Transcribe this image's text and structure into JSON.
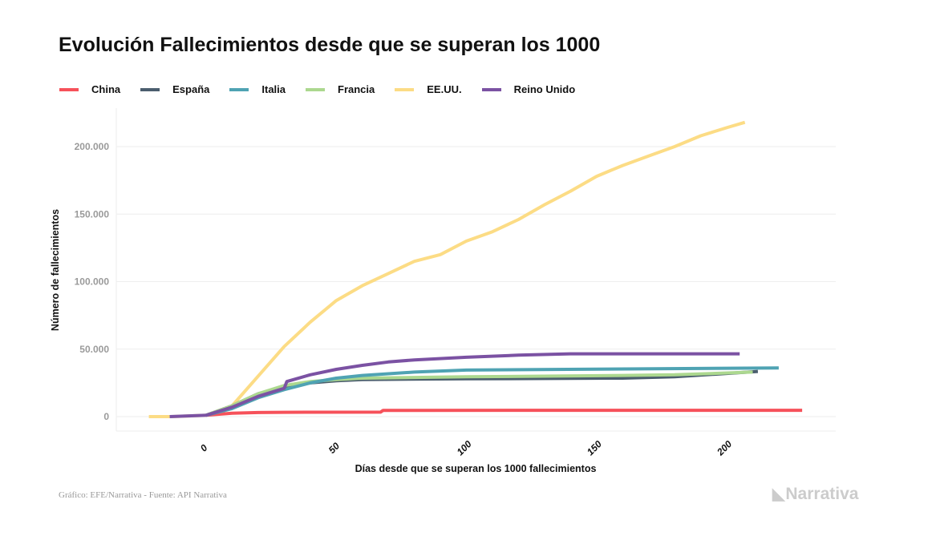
{
  "chart_data": {
    "type": "line",
    "title": "Evolución Fallecimientos desde que se superan los 1000",
    "xlabel": "Días desde que se superan los 1000 fallecimientos",
    "ylabel": "Número de fallecimientos",
    "xlim": [
      -35,
      240
    ],
    "ylim": [
      -12000,
      228000
    ],
    "x_ticks": [
      0,
      50,
      100,
      150,
      200
    ],
    "x_tick_labels": [
      "0",
      "50",
      "100",
      "150",
      "200"
    ],
    "y_ticks": [
      0,
      50000,
      100000,
      150000,
      200000
    ],
    "y_tick_labels": [
      "0",
      "50.000",
      "100.000",
      "150.000",
      "200.000"
    ],
    "grid": true,
    "legend_position": "top-left",
    "series": [
      {
        "name": "China",
        "color": "#f6515a",
        "x": [
          0,
          10,
          20,
          30,
          67,
          68,
          229
        ],
        "y": [
          1000,
          2500,
          3000,
          3200,
          3300,
          4600,
          4700
        ]
      },
      {
        "name": "España",
        "color": "#4b5e6e",
        "x": [
          0,
          10,
          20,
          30,
          40,
          50,
          60,
          100,
          160,
          180,
          212
        ],
        "y": [
          1000,
          8000,
          17000,
          22000,
          25000,
          26500,
          27500,
          28000,
          28500,
          29500,
          33500
        ]
      },
      {
        "name": "Italia",
        "color": "#4fa3b3",
        "x": [
          0,
          10,
          20,
          30,
          40,
          50,
          60,
          80,
          100,
          150,
          220
        ],
        "y": [
          1000,
          6000,
          14000,
          20000,
          25000,
          28500,
          30500,
          33000,
          34500,
          35200,
          36000
        ]
      },
      {
        "name": "Francia",
        "color": "#acd88f",
        "x": [
          0,
          10,
          20,
          30,
          40,
          50,
          60,
          100,
          160,
          180,
          210
        ],
        "y": [
          1000,
          8000,
          17000,
          23000,
          26000,
          27500,
          28500,
          29500,
          30500,
          31000,
          33000
        ]
      },
      {
        "name": "EE.UU.",
        "color": "#fcdc85",
        "x": [
          -22,
          -13,
          0,
          10,
          20,
          30,
          40,
          50,
          60,
          70,
          80,
          90,
          100,
          110,
          120,
          130,
          140,
          150,
          160,
          170,
          180,
          190,
          200,
          207
        ],
        "y": [
          0,
          0,
          1000,
          8000,
          30000,
          52000,
          70000,
          86000,
          97000,
          106000,
          115000,
          120000,
          130000,
          137000,
          146000,
          157000,
          167000,
          178000,
          186000,
          193000,
          200000,
          208000,
          214000,
          218000
        ]
      },
      {
        "name": "Reino Unido",
        "color": "#7b52a3",
        "x": [
          -14,
          0,
          10,
          20,
          30,
          31,
          40,
          50,
          60,
          70,
          80,
          100,
          120,
          140,
          205
        ],
        "y": [
          0,
          1000,
          7000,
          15000,
          21000,
          26000,
          31000,
          35000,
          38000,
          40500,
          42000,
          44000,
          45500,
          46500,
          46500
        ]
      }
    ]
  },
  "source": "Gráfico: EFE/Narrativa - Fuente: API Narrativa",
  "logo": "Narrativa"
}
